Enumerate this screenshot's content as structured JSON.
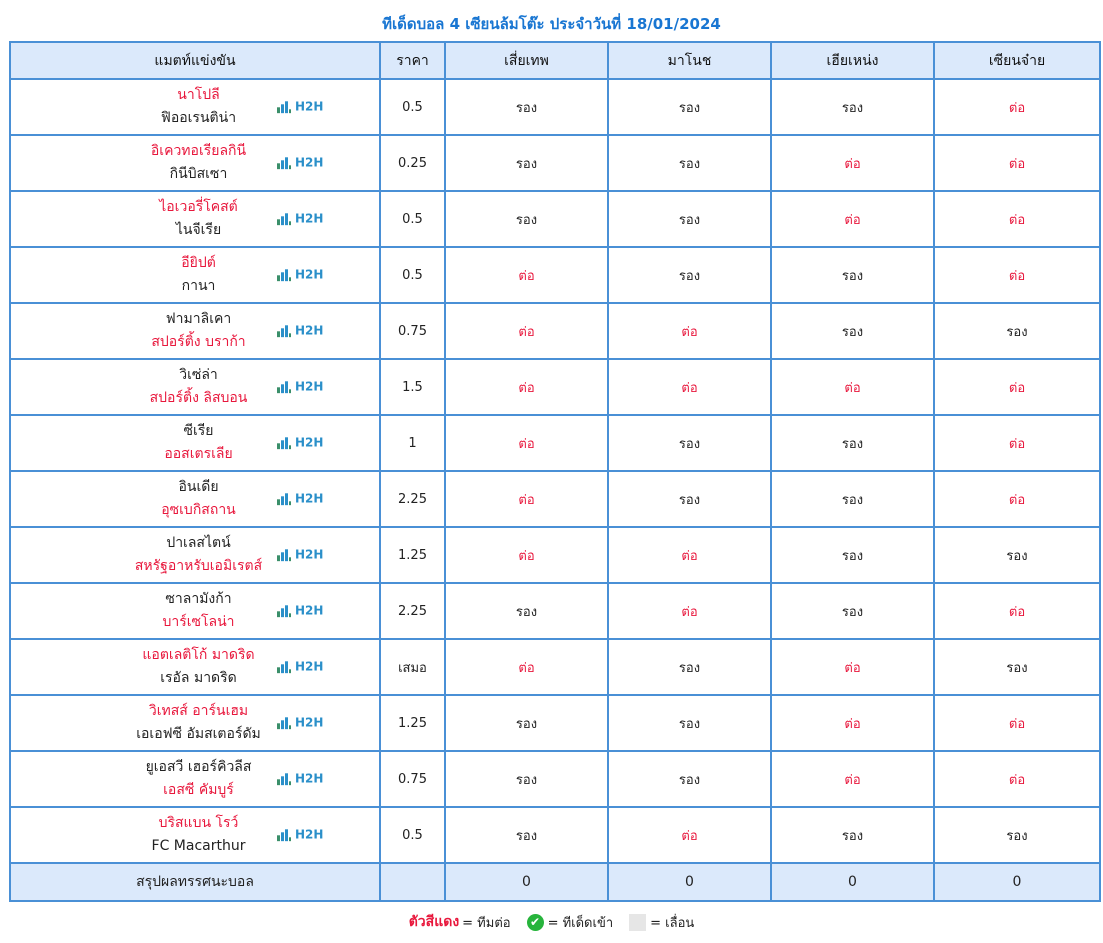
{
  "title": "ทีเด็ดบอล 4 เซียนล้มโต๊ะ ประจำวันที่ 18/01/2024",
  "headers": {
    "match": "แมตท์แข่งขัน",
    "price": "ราคา",
    "experts": [
      "เสี่ยเทพ",
      "มาโนช",
      "เฮียเหน่ง",
      "เซียนจ๋าย"
    ]
  },
  "h2h_label": "H2H",
  "rows": [
    {
      "home": "นาโปลี",
      "away": "ฟิออเรนติน่า",
      "fav": "home",
      "price": "0.5",
      "picks": [
        "รอง",
        "รอง",
        "รอง",
        "ต่อ"
      ]
    },
    {
      "home": "อิเควทอเรียลกินี",
      "away": "กินีบิสเซา",
      "fav": "home",
      "price": "0.25",
      "picks": [
        "รอง",
        "รอง",
        "ต่อ",
        "ต่อ"
      ]
    },
    {
      "home": "ไอเวอรี่โคสต์",
      "away": "ไนจีเรีย",
      "fav": "home",
      "price": "0.5",
      "picks": [
        "รอง",
        "รอง",
        "ต่อ",
        "ต่อ"
      ]
    },
    {
      "home": "อียิปต์",
      "away": "กานา",
      "fav": "home",
      "price": "0.5",
      "picks": [
        "ต่อ",
        "รอง",
        "รอง",
        "ต่อ"
      ]
    },
    {
      "home": "ฟามาลิเคา",
      "away": "สปอร์ติ้ง บราก้า",
      "fav": "away",
      "price": "0.75",
      "picks": [
        "ต่อ",
        "ต่อ",
        "รอง",
        "รอง"
      ]
    },
    {
      "home": "วิเซ่ล่า",
      "away": "สปอร์ติ้ง ลิสบอน",
      "fav": "away",
      "price": "1.5",
      "picks": [
        "ต่อ",
        "ต่อ",
        "ต่อ",
        "ต่อ"
      ]
    },
    {
      "home": "ซีเรีย",
      "away": "ออสเตรเลีย",
      "fav": "away",
      "price": "1",
      "picks": [
        "ต่อ",
        "รอง",
        "รอง",
        "ต่อ"
      ]
    },
    {
      "home": "อินเดีย",
      "away": "อุซเบกิสถาน",
      "fav": "away",
      "price": "2.25",
      "picks": [
        "ต่อ",
        "รอง",
        "รอง",
        "ต่อ"
      ]
    },
    {
      "home": "ปาเลสไตน์",
      "away": "สหรัฐอาหรับเอมิเรตส์",
      "fav": "away",
      "price": "1.25",
      "picks": [
        "ต่อ",
        "ต่อ",
        "รอง",
        "รอง"
      ]
    },
    {
      "home": "ซาลามังก้า",
      "away": "บาร์เซโลน่า",
      "fav": "away",
      "price": "2.25",
      "picks": [
        "รอง",
        "ต่อ",
        "รอง",
        "ต่อ"
      ]
    },
    {
      "home": "แอตเลติโก้ มาดริด",
      "away": "เรอัล มาดริด",
      "fav": "home",
      "price": "เสมอ",
      "picks": [
        "ต่อ",
        "รอง",
        "ต่อ",
        "รอง"
      ]
    },
    {
      "home": "วิเทสส์ อาร์นเฮม",
      "away": "เอเอฟซี อัมสเตอร์ดัม",
      "fav": "home",
      "price": "1.25",
      "picks": [
        "รอง",
        "รอง",
        "ต่อ",
        "ต่อ"
      ]
    },
    {
      "home": "ยูเอสวี เฮอร์คิวลีส",
      "away": "เอสซี คัมบูร์",
      "fav": "away",
      "price": "0.75",
      "picks": [
        "รอง",
        "รอง",
        "ต่อ",
        "ต่อ"
      ]
    },
    {
      "home": "บริสแบน โรว์",
      "away": "FC Macarthur",
      "fav": "home",
      "price": "0.5",
      "picks": [
        "รอง",
        "ต่อ",
        "รอง",
        "รอง"
      ]
    }
  ],
  "summary": {
    "label": "สรุปผลทรรศนะบอล",
    "price": "",
    "scores": [
      "0",
      "0",
      "0",
      "0"
    ]
  },
  "legend": {
    "red_text": "ตัวสีแดง",
    "red_desc": "= ทีมต่อ",
    "check_desc": "= ทีเด็ดเข้า",
    "grey_desc": "= เลื่อน"
  },
  "colors": {
    "favorite": "#e8173c",
    "title": "#1976d2",
    "header_bg": "#dbe9fb",
    "border": "#4a90d6",
    "check": "#27b43c"
  },
  "icons": {
    "h2h": "bar-chart-icon",
    "check": "check-circle-icon"
  }
}
